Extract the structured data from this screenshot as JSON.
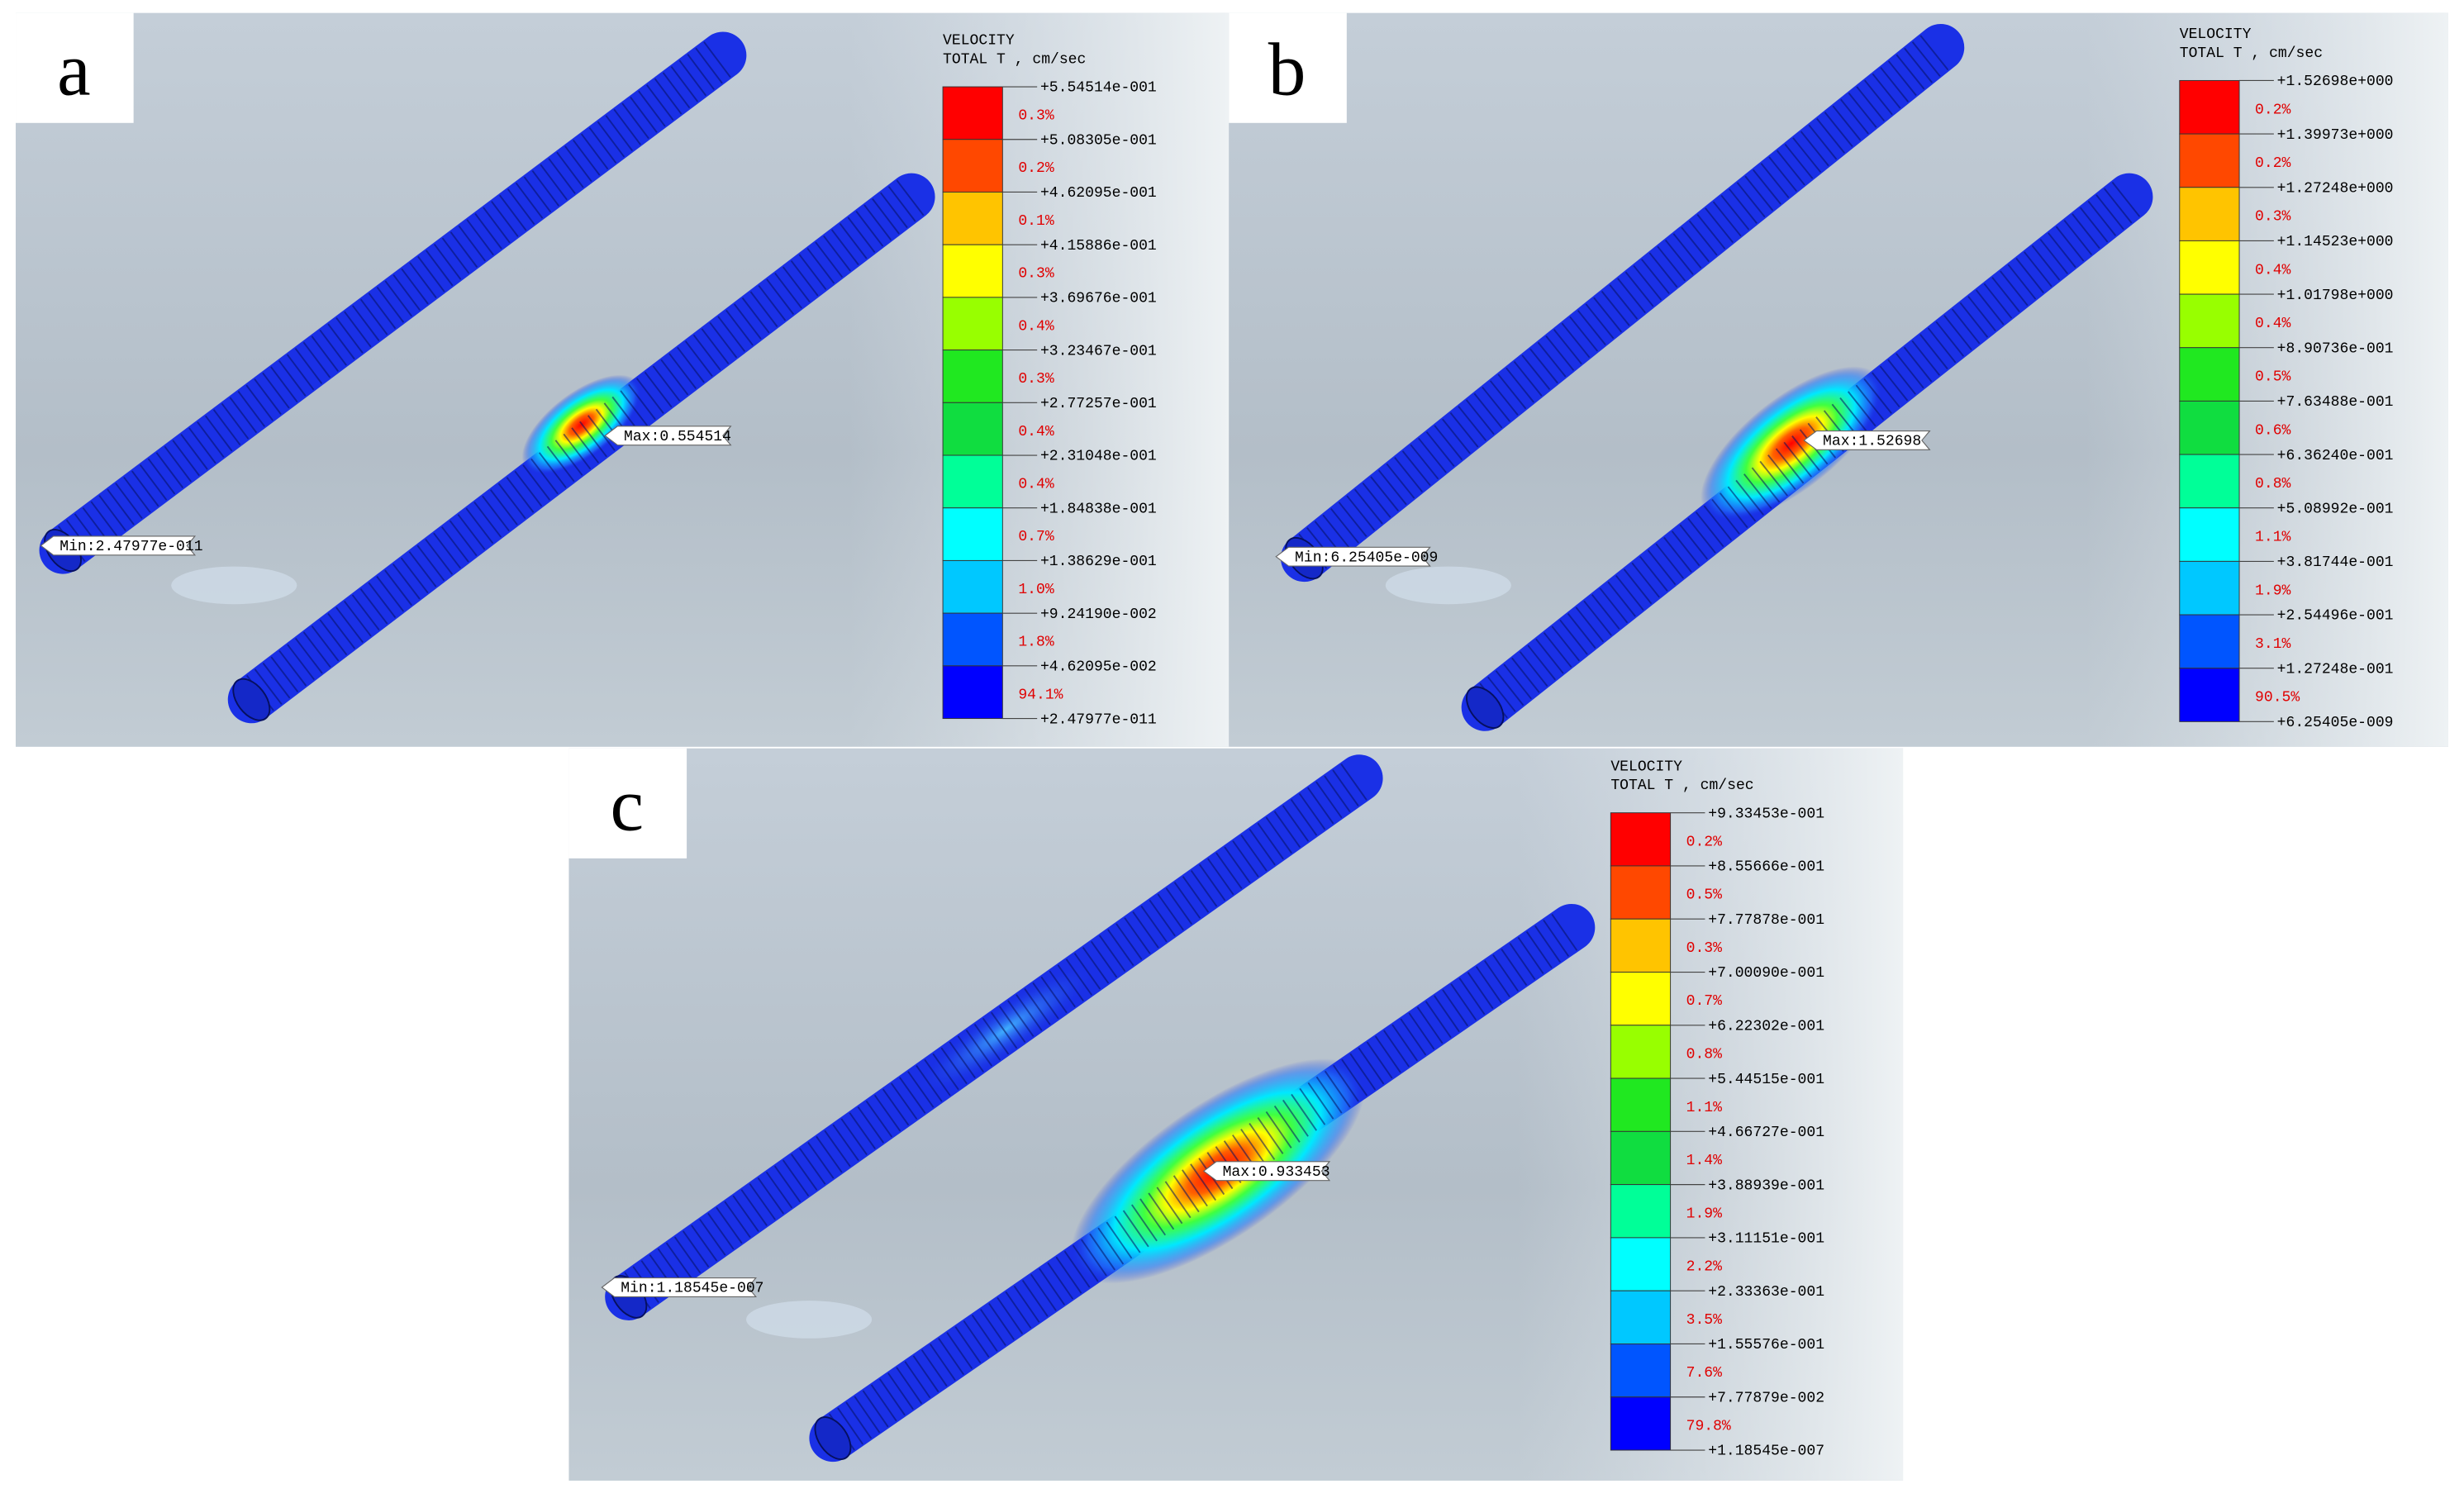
{
  "panels": [
    {
      "label": "a",
      "legend": {
        "title": "VELOCITY",
        "unit": "TOTAL T ,  cm/sec",
        "levels": [
          "+5.54514e-001",
          "+5.08305e-001",
          "+4.62095e-001",
          "+4.15886e-001",
          "+3.69676e-001",
          "+3.23467e-001",
          "+2.77257e-001",
          "+2.31048e-001",
          "+1.84838e-001",
          "+1.38629e-001",
          "+9.24190e-002",
          "+4.62095e-002",
          "+2.47977e-011"
        ],
        "percents": [
          "0.3%",
          "0.2%",
          "0.1%",
          "0.3%",
          "0.4%",
          "0.3%",
          "0.4%",
          "0.4%",
          "0.7%",
          "1.0%",
          "1.8%",
          "94.1%"
        ]
      },
      "max_label": "Max:0.554514",
      "min_label": "Min:2.47977e-011"
    },
    {
      "label": "b",
      "legend": {
        "title": "VELOCITY",
        "unit": "TOTAL T ,  cm/sec",
        "levels": [
          "+1.52698e+000",
          "+1.39973e+000",
          "+1.27248e+000",
          "+1.14523e+000",
          "+1.01798e+000",
          "+8.90736e-001",
          "+7.63488e-001",
          "+6.36240e-001",
          "+5.08992e-001",
          "+3.81744e-001",
          "+2.54496e-001",
          "+1.27248e-001",
          "+6.25405e-009"
        ],
        "percents": [
          "0.2%",
          "0.2%",
          "0.3%",
          "0.4%",
          "0.4%",
          "0.5%",
          "0.6%",
          "0.8%",
          "1.1%",
          "1.9%",
          "3.1%",
          "90.5%"
        ]
      },
      "max_label": "Max:1.52698",
      "min_label": "Min:6.25405e-009"
    },
    {
      "label": "c",
      "legend": {
        "title": "VELOCITY",
        "unit": "TOTAL T ,  cm/sec",
        "levels": [
          "+9.33453e-001",
          "+8.55666e-001",
          "+7.77878e-001",
          "+7.00090e-001",
          "+6.22302e-001",
          "+5.44515e-001",
          "+4.66727e-001",
          "+3.88939e-001",
          "+3.11151e-001",
          "+2.33363e-001",
          "+1.55576e-001",
          "+7.77879e-002",
          "+1.18545e-007"
        ],
        "percents": [
          "0.2%",
          "0.5%",
          "0.3%",
          "0.7%",
          "0.8%",
          "1.1%",
          "1.4%",
          "1.9%",
          "2.2%",
          "3.5%",
          "7.6%",
          "79.8%"
        ]
      },
      "max_label": "Max:0.933453",
      "min_label": "Min:1.18545e-007"
    }
  ]
}
